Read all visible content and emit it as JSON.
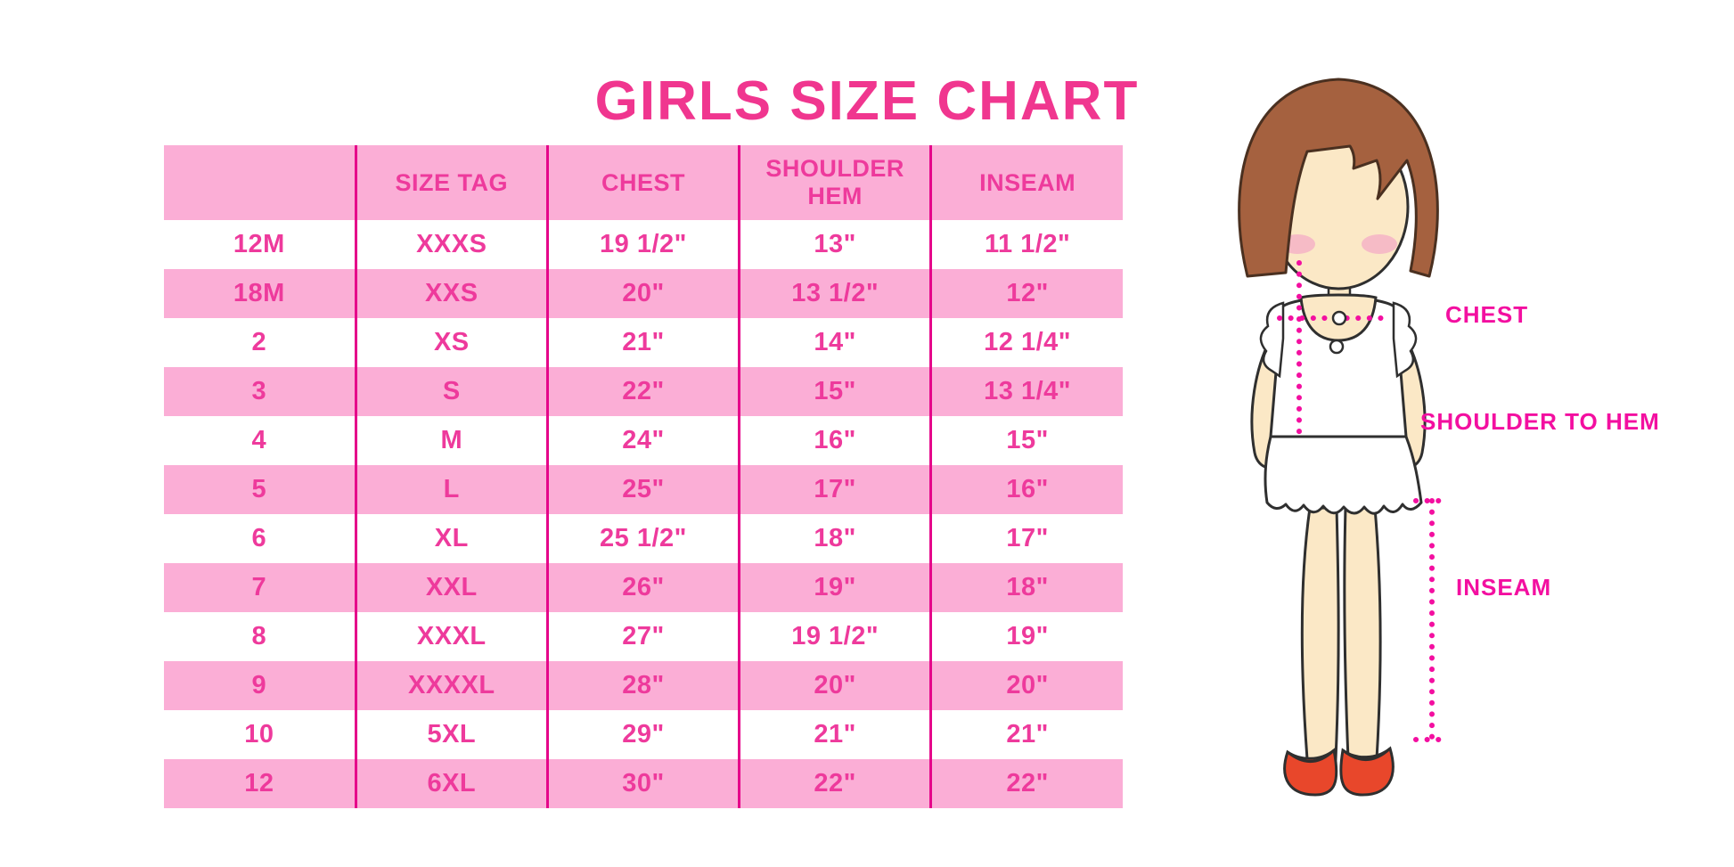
{
  "title": "GIRLS SIZE CHART",
  "table": {
    "columns": [
      "",
      "SIZE TAG",
      "CHEST",
      "SHOULDER HEM",
      "INSEAM"
    ],
    "rows": [
      {
        "size": "12M",
        "size_tag": "XXXS",
        "chest": "19 1/2\"",
        "shoulder_hem": "13\"",
        "inseam": "11 1/2\""
      },
      {
        "size": "18M",
        "size_tag": "XXS",
        "chest": "20\"",
        "shoulder_hem": "13 1/2\"",
        "inseam": "12\""
      },
      {
        "size": "2",
        "size_tag": "XS",
        "chest": "21\"",
        "shoulder_hem": "14\"",
        "inseam": "12 1/4\""
      },
      {
        "size": "3",
        "size_tag": "S",
        "chest": "22\"",
        "shoulder_hem": "15\"",
        "inseam": "13 1/4\""
      },
      {
        "size": "4",
        "size_tag": "M",
        "chest": "24\"",
        "shoulder_hem": "16\"",
        "inseam": "15\""
      },
      {
        "size": "5",
        "size_tag": "L",
        "chest": "25\"",
        "shoulder_hem": "17\"",
        "inseam": "16\""
      },
      {
        "size": "6",
        "size_tag": "XL",
        "chest": "25 1/2\"",
        "shoulder_hem": "18\"",
        "inseam": "17\""
      },
      {
        "size": "7",
        "size_tag": "XXL",
        "chest": "26\"",
        "shoulder_hem": "19\"",
        "inseam": "18\""
      },
      {
        "size": "8",
        "size_tag": "XXXL",
        "chest": "27\"",
        "shoulder_hem": "19 1/2\"",
        "inseam": "19\""
      },
      {
        "size": "9",
        "size_tag": "XXXXL",
        "chest": "28\"",
        "shoulder_hem": "20\"",
        "inseam": "20\""
      },
      {
        "size": "10",
        "size_tag": "5XL",
        "chest": "29\"",
        "shoulder_hem": "21\"",
        "inseam": "21\""
      },
      {
        "size": "12",
        "size_tag": "6XL",
        "chest": "30\"",
        "shoulder_hem": "22\"",
        "inseam": "22\""
      }
    ]
  },
  "figure": {
    "labels": {
      "chest": "CHEST",
      "shoulder_to_hem": "SHOULDER TO HEM",
      "inseam": "INSEAM"
    }
  },
  "colors": {
    "title_pink": "#F0368F",
    "row_pink": "#FBAED6",
    "table_text": "#EE3A9C",
    "divider": "#E5058A",
    "label_magenta": "#F30FA0",
    "hair_brown": "#A5613F",
    "skin": "#FBE8C6",
    "shoe_red": "#E8472B"
  },
  "chart_data": {
    "type": "table",
    "title": "GIRLS SIZE CHART",
    "columns": [
      "",
      "SIZE TAG",
      "CHEST",
      "SHOULDER HEM",
      "INSEAM"
    ],
    "rows": [
      [
        "12M",
        "XXXS",
        "19 1/2\"",
        "13\"",
        "11 1/2\""
      ],
      [
        "18M",
        "XXS",
        "20\"",
        "13 1/2\"",
        "12\""
      ],
      [
        "2",
        "XS",
        "21\"",
        "14\"",
        "12 1/4\""
      ],
      [
        "3",
        "S",
        "22\"",
        "15\"",
        "13 1/4\""
      ],
      [
        "4",
        "M",
        "24\"",
        "16\"",
        "15\""
      ],
      [
        "5",
        "L",
        "25\"",
        "17\"",
        "16\""
      ],
      [
        "6",
        "XL",
        "25 1/2\"",
        "18\"",
        "17\""
      ],
      [
        "7",
        "XXL",
        "26\"",
        "19\"",
        "18\""
      ],
      [
        "8",
        "XXXL",
        "27\"",
        "19 1/2\"",
        "19\""
      ],
      [
        "9",
        "XXXXL",
        "28\"",
        "20\"",
        "20\""
      ],
      [
        "10",
        "5XL",
        "29\"",
        "21\"",
        "21\""
      ],
      [
        "12",
        "6XL",
        "30\"",
        "22\"",
        "22\""
      ]
    ],
    "notes": "Measurement diagram labels: CHEST (horizontal dotted line across chest), SHOULDER TO HEM (vertical dotted line from shoulder to dress hem), INSEAM (vertical dotted line along inner leg)."
  }
}
